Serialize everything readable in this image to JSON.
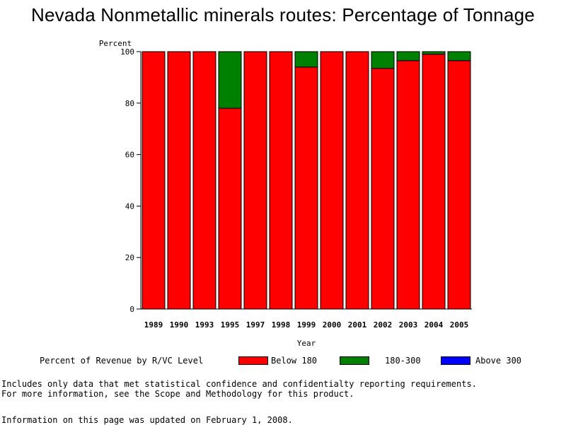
{
  "chart_data": {
    "type": "bar",
    "stacked": true,
    "title": "Nevada Nonmetallic minerals routes: Percentage of Tonnage",
    "ylabel": "Percent",
    "xlabel": "Year",
    "ylim": [
      0,
      100
    ],
    "yticks": [
      0,
      20,
      40,
      60,
      80,
      100
    ],
    "categories": [
      "1989",
      "1990",
      "1993",
      "1995",
      "1997",
      "1998",
      "1999",
      "2000",
      "2001",
      "2002",
      "2003",
      "2004",
      "2005"
    ],
    "series": [
      {
        "name": "Below 180",
        "color": "#ff0000",
        "values": [
          100,
          100,
          100,
          78,
          100,
          100,
          94,
          100,
          100,
          93.5,
          96.5,
          99,
          96.5
        ]
      },
      {
        "name": "180-300",
        "color": "#008000",
        "values": [
          0,
          0,
          0,
          22,
          0,
          0,
          6,
          0,
          0,
          6.5,
          3.5,
          1,
          3.5
        ]
      },
      {
        "name": "Above 300",
        "color": "#0000ff",
        "values": [
          0,
          0,
          0,
          0,
          0,
          0,
          0,
          0,
          0,
          0,
          0,
          0,
          0
        ]
      }
    ],
    "legend_title": "Percent of Revenue by R/VC Level",
    "legend_position": "bottom"
  },
  "notes": {
    "line1": "Includes only data that met statistical confidence and confidentialty reporting requirements.",
    "line2": "For more information, see the Scope and Methodology for this product.",
    "updated": "Information on this page was updated on February 1, 2008."
  }
}
